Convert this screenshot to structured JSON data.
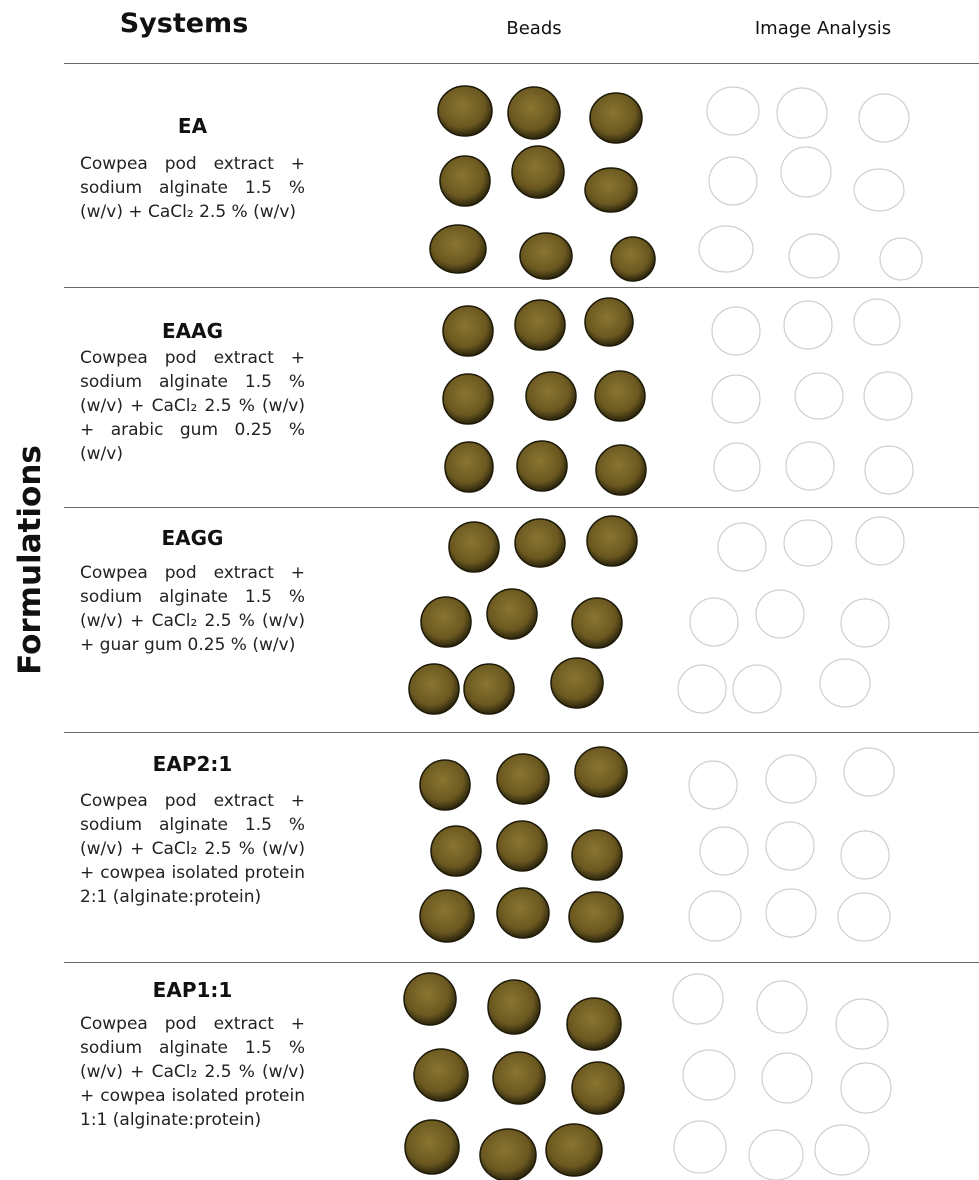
{
  "header": {
    "systems": "Systems",
    "beads": "Beads",
    "analysis": "Image Analysis"
  },
  "side_label": "Formulations",
  "rows": [
    {
      "name": "EA",
      "description": "Cowpea pod extract + sodium alginate 1.5 % (w/v) + CaCl₂ 2.5 % (w/v)"
    },
    {
      "name": "EAAG",
      "description": "Cowpea pod extract + sodium alginate 1.5 % (w/v) + CaCl₂ 2.5 % (w/v) + arabic gum 0.25 % (w/v)"
    },
    {
      "name": "EAGG",
      "description": "Cowpea pod extract + sodium alginate 1.5 % (w/v) + CaCl₂ 2.5 % (w/v) + guar gum 0.25 % (w/v)"
    },
    {
      "name": "EAP2:1",
      "description": "Cowpea pod extract + sodium alginate 1.5 % (w/v) + CaCl₂ 2.5 % (w/v) + cowpea isolated protein 2:1 (alginate:protein)"
    },
    {
      "name": "EAP1:1",
      "description": "Cowpea pod extract + sodium alginate 1.5 % (w/v) + CaCl₂ 2.5 % (w/v) + cowpea isolated protein 1:1 (alginate:protein)"
    }
  ]
}
